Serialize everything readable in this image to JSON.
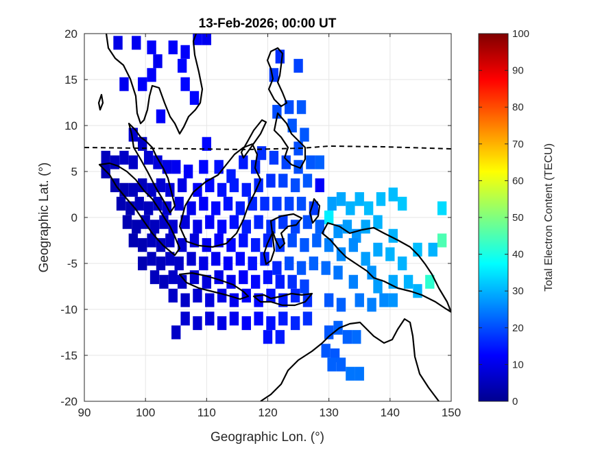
{
  "chart_data": {
    "type": "heatmap",
    "title": "13-Feb-2026; 00:00 UT",
    "xlabel": "Geographic Lon. (°)",
    "ylabel": "Geographic Lat. (°)",
    "xlim": [
      90,
      150
    ],
    "ylim": [
      -20,
      20
    ],
    "xticks": [
      "90",
      "100",
      "110",
      "120",
      "130",
      "140",
      "150"
    ],
    "yticks": [
      "20",
      "15",
      "10",
      "5",
      "0",
      "-5",
      "-10",
      "-15",
      "-20"
    ],
    "grid": true,
    "colorbar": {
      "label": "Total Electron Content (TECU)",
      "range": [
        0,
        100
      ],
      "ticks": [
        "100",
        "90",
        "80",
        "70",
        "60",
        "50",
        "40",
        "30",
        "20",
        "10",
        "0"
      ],
      "colormap": "jet"
    },
    "cell_size_deg": [
      1.5,
      1.5
    ],
    "cells": [
      {
        "lon": 95.5,
        "lat": 19,
        "tec": 10
      },
      {
        "lon": 98.5,
        "lat": 19,
        "tec": 11
      },
      {
        "lon": 101,
        "lat": 18.5,
        "tec": 12
      },
      {
        "lon": 102,
        "lat": 17,
        "tec": 11
      },
      {
        "lon": 104.5,
        "lat": 18.5,
        "tec": 12
      },
      {
        "lon": 106.5,
        "lat": 18,
        "tec": 12
      },
      {
        "lon": 106,
        "lat": 16.5,
        "tec": 13
      },
      {
        "lon": 108.5,
        "lat": 19.5,
        "tec": 12
      },
      {
        "lon": 110,
        "lat": 19.5,
        "tec": 11
      },
      {
        "lon": 101,
        "lat": 15.5,
        "tec": 12
      },
      {
        "lon": 99.5,
        "lat": 14.5,
        "tec": 12
      },
      {
        "lon": 96.5,
        "lat": 14.5,
        "tec": 11
      },
      {
        "lon": 106.5,
        "lat": 14.5,
        "tec": 13
      },
      {
        "lon": 108,
        "lat": 13,
        "tec": 13
      },
      {
        "lon": 102.5,
        "lat": 11,
        "tec": 12
      },
      {
        "lon": 110,
        "lat": 8,
        "tec": 13
      },
      {
        "lon": 122,
        "lat": 17.5,
        "tec": 17
      },
      {
        "lon": 121,
        "lat": 15.5,
        "tec": 18
      },
      {
        "lon": 125,
        "lat": 16.5,
        "tec": 19
      },
      {
        "lon": 123.5,
        "lat": 12,
        "tec": 20
      },
      {
        "lon": 121.5,
        "lat": 11.5,
        "tec": 20
      },
      {
        "lon": 125.5,
        "lat": 12,
        "tec": 21
      },
      {
        "lon": 124,
        "lat": 10,
        "tec": 21
      },
      {
        "lon": 126,
        "lat": 9,
        "tec": 21
      },
      {
        "lon": 125,
        "lat": 7.5,
        "tec": 20
      },
      {
        "lon": 93.5,
        "lat": 6.5,
        "tec": 6
      },
      {
        "lon": 93.5,
        "lat": 5,
        "tec": 5
      },
      {
        "lon": 95,
        "lat": 6,
        "tec": 6
      },
      {
        "lon": 96.5,
        "lat": 6.5,
        "tec": 7
      },
      {
        "lon": 98,
        "lat": 6,
        "tec": 7
      },
      {
        "lon": 99.5,
        "lat": 8,
        "tec": 7
      },
      {
        "lon": 98,
        "lat": 9,
        "tec": 8
      },
      {
        "lon": 100.5,
        "lat": 6.5,
        "tec": 8
      },
      {
        "lon": 102,
        "lat": 6,
        "tec": 9
      },
      {
        "lon": 103.5,
        "lat": 5.5,
        "tec": 10
      },
      {
        "lon": 105,
        "lat": 5.5,
        "tec": 11
      },
      {
        "lon": 107,
        "lat": 5,
        "tec": 12
      },
      {
        "lon": 109.5,
        "lat": 5.5,
        "tec": 13
      },
      {
        "lon": 112,
        "lat": 5.5,
        "tec": 14
      },
      {
        "lon": 114,
        "lat": 4.5,
        "tec": 15
      },
      {
        "lon": 116,
        "lat": 6,
        "tec": 15
      },
      {
        "lon": 118,
        "lat": 5.5,
        "tec": 16
      },
      {
        "lon": 119,
        "lat": 7,
        "tec": 17
      },
      {
        "lon": 121,
        "lat": 6.5,
        "tec": 18
      },
      {
        "lon": 123,
        "lat": 6,
        "tec": 19
      },
      {
        "lon": 125,
        "lat": 5.5,
        "tec": 20
      },
      {
        "lon": 127,
        "lat": 6,
        "tec": 21
      },
      {
        "lon": 128.5,
        "lat": 6,
        "tec": 22
      },
      {
        "lon": 95,
        "lat": 3.5,
        "tec": 5
      },
      {
        "lon": 96.5,
        "lat": 3,
        "tec": 5
      },
      {
        "lon": 98,
        "lat": 3,
        "tec": 6
      },
      {
        "lon": 99.5,
        "lat": 3.5,
        "tec": 6
      },
      {
        "lon": 101,
        "lat": 3,
        "tec": 7
      },
      {
        "lon": 102.5,
        "lat": 3.5,
        "tec": 8
      },
      {
        "lon": 104,
        "lat": 3,
        "tec": 9
      },
      {
        "lon": 106,
        "lat": 3.5,
        "tec": 10
      },
      {
        "lon": 108.5,
        "lat": 3,
        "tec": 12
      },
      {
        "lon": 110.5,
        "lat": 3.5,
        "tec": 13
      },
      {
        "lon": 112.5,
        "lat": 3,
        "tec": 14
      },
      {
        "lon": 114.5,
        "lat": 3.5,
        "tec": 15
      },
      {
        "lon": 116.5,
        "lat": 3,
        "tec": 15
      },
      {
        "lon": 118.5,
        "lat": 3.5,
        "tec": 16
      },
      {
        "lon": 120.5,
        "lat": 4,
        "tec": 17
      },
      {
        "lon": 122.5,
        "lat": 4,
        "tec": 19
      },
      {
        "lon": 124.5,
        "lat": 3.5,
        "tec": 20
      },
      {
        "lon": 126.5,
        "lat": 4,
        "tec": 21
      },
      {
        "lon": 128.5,
        "lat": 3.5,
        "tec": 12
      },
      {
        "lon": 96,
        "lat": 1.5,
        "tec": 5
      },
      {
        "lon": 97.5,
        "lat": 1,
        "tec": 5
      },
      {
        "lon": 99,
        "lat": 1.5,
        "tec": 6
      },
      {
        "lon": 100.5,
        "lat": 1,
        "tec": 6
      },
      {
        "lon": 102,
        "lat": 1.5,
        "tec": 7
      },
      {
        "lon": 103.5,
        "lat": 1,
        "tec": 8
      },
      {
        "lon": 105.5,
        "lat": 1.5,
        "tec": 10
      },
      {
        "lon": 107.5,
        "lat": 1,
        "tec": 11
      },
      {
        "lon": 109.5,
        "lat": 1.5,
        "tec": 12
      },
      {
        "lon": 111.5,
        "lat": 1,
        "tec": 13
      },
      {
        "lon": 113.5,
        "lat": 1.5,
        "tec": 14
      },
      {
        "lon": 115.5,
        "lat": 1,
        "tec": 15
      },
      {
        "lon": 117.5,
        "lat": 1.5,
        "tec": 16
      },
      {
        "lon": 119.5,
        "lat": 1.5,
        "tec": 17
      },
      {
        "lon": 121.5,
        "lat": 1.5,
        "tec": 18
      },
      {
        "lon": 123.5,
        "lat": 1.5,
        "tec": 19
      },
      {
        "lon": 125.5,
        "lat": 1.5,
        "tec": 20
      },
      {
        "lon": 127.5,
        "lat": 1,
        "tec": 18
      },
      {
        "lon": 130.5,
        "lat": 1.5,
        "tec": 28
      },
      {
        "lon": 132,
        "lat": 2,
        "tec": 29
      },
      {
        "lon": 133.5,
        "lat": 1,
        "tec": 30
      },
      {
        "lon": 135,
        "lat": 2,
        "tec": 30
      },
      {
        "lon": 136.5,
        "lat": 1,
        "tec": 31
      },
      {
        "lon": 138.5,
        "lat": 2,
        "tec": 31
      },
      {
        "lon": 140.5,
        "lat": 2.5,
        "tec": 31
      },
      {
        "lon": 142,
        "lat": 1.5,
        "tec": 32
      },
      {
        "lon": 148.5,
        "lat": 1,
        "tec": 34
      },
      {
        "lon": 97,
        "lat": -0.5,
        "tec": 5
      },
      {
        "lon": 98.5,
        "lat": -1,
        "tec": 5
      },
      {
        "lon": 100,
        "lat": -0.5,
        "tec": 6
      },
      {
        "lon": 101.5,
        "lat": -1,
        "tec": 6
      },
      {
        "lon": 103,
        "lat": -0.5,
        "tec": 7
      },
      {
        "lon": 104.5,
        "lat": -1,
        "tec": 8
      },
      {
        "lon": 106.5,
        "lat": -0.5,
        "tec": 9
      },
      {
        "lon": 108.5,
        "lat": -1,
        "tec": 10
      },
      {
        "lon": 110.5,
        "lat": -0.5,
        "tec": 12
      },
      {
        "lon": 112.5,
        "lat": -1,
        "tec": 13
      },
      {
        "lon": 114.5,
        "lat": -0.5,
        "tec": 14
      },
      {
        "lon": 116.5,
        "lat": -1,
        "tec": 15
      },
      {
        "lon": 118.5,
        "lat": -0.5,
        "tec": 16
      },
      {
        "lon": 120.5,
        "lat": -1,
        "tec": 17
      },
      {
        "lon": 122.5,
        "lat": -0.5,
        "tec": 18
      },
      {
        "lon": 124.5,
        "lat": -1,
        "tec": 19
      },
      {
        "lon": 126.5,
        "lat": -0.5,
        "tec": 20
      },
      {
        "lon": 128.5,
        "lat": -1,
        "tec": 22
      },
      {
        "lon": 130,
        "lat": 0,
        "tec": 36
      },
      {
        "lon": 131.5,
        "lat": -1.5,
        "tec": 27
      },
      {
        "lon": 133,
        "lat": -1,
        "tec": 28
      },
      {
        "lon": 134.5,
        "lat": -2,
        "tec": 27
      },
      {
        "lon": 136,
        "lat": -1,
        "tec": 29
      },
      {
        "lon": 138,
        "lat": -0.5,
        "tec": 30
      },
      {
        "lon": 140.5,
        "lat": -2,
        "tec": 30
      },
      {
        "lon": 98,
        "lat": -2.5,
        "tec": 5
      },
      {
        "lon": 99.5,
        "lat": -3,
        "tec": 5
      },
      {
        "lon": 101,
        "lat": -2.5,
        "tec": 6
      },
      {
        "lon": 102.5,
        "lat": -3,
        "tec": 6
      },
      {
        "lon": 104,
        "lat": -2.5,
        "tec": 7
      },
      {
        "lon": 106,
        "lat": -3,
        "tec": 8
      },
      {
        "lon": 108,
        "lat": -2.5,
        "tec": 9
      },
      {
        "lon": 110,
        "lat": -3,
        "tec": 11
      },
      {
        "lon": 112,
        "lat": -2.5,
        "tec": 12
      },
      {
        "lon": 114,
        "lat": -3,
        "tec": 13
      },
      {
        "lon": 116,
        "lat": -2.5,
        "tec": 14
      },
      {
        "lon": 118,
        "lat": -3,
        "tec": 15
      },
      {
        "lon": 120,
        "lat": -2.5,
        "tec": 16
      },
      {
        "lon": 122,
        "lat": -3,
        "tec": 18
      },
      {
        "lon": 124,
        "lat": -2.5,
        "tec": 20
      },
      {
        "lon": 126,
        "lat": -3,
        "tec": 21
      },
      {
        "lon": 128,
        "lat": -2.5,
        "tec": 22
      },
      {
        "lon": 130,
        "lat": -3,
        "tec": 25
      },
      {
        "lon": 132,
        "lat": -4,
        "tec": 26
      },
      {
        "lon": 134,
        "lat": -3,
        "tec": 26
      },
      {
        "lon": 136,
        "lat": -4.5,
        "tec": 28
      },
      {
        "lon": 138,
        "lat": -3.5,
        "tec": 29
      },
      {
        "lon": 140,
        "lat": -4,
        "tec": 30
      },
      {
        "lon": 142,
        "lat": -5,
        "tec": 30
      },
      {
        "lon": 144.5,
        "lat": -3.5,
        "tec": 31
      },
      {
        "lon": 147,
        "lat": -3.5,
        "tec": 30
      },
      {
        "lon": 148.5,
        "lat": -2.5,
        "tec": 45
      },
      {
        "lon": 99.5,
        "lat": -5,
        "tec": 5
      },
      {
        "lon": 101,
        "lat": -4.5,
        "tec": 6
      },
      {
        "lon": 102.5,
        "lat": -5,
        "tec": 6
      },
      {
        "lon": 104,
        "lat": -4.5,
        "tec": 7
      },
      {
        "lon": 105.5,
        "lat": -5,
        "tec": 7
      },
      {
        "lon": 107.5,
        "lat": -4.5,
        "tec": 8
      },
      {
        "lon": 109.5,
        "lat": -5,
        "tec": 10
      },
      {
        "lon": 111.5,
        "lat": -4.5,
        "tec": 11
      },
      {
        "lon": 113.5,
        "lat": -5,
        "tec": 12
      },
      {
        "lon": 115.5,
        "lat": -4.5,
        "tec": 13
      },
      {
        "lon": 117.5,
        "lat": -5,
        "tec": 14
      },
      {
        "lon": 119.5,
        "lat": -4.5,
        "tec": 15
      },
      {
        "lon": 121.5,
        "lat": -5.5,
        "tec": 16
      },
      {
        "lon": 123.5,
        "lat": -5,
        "tec": 20
      },
      {
        "lon": 125.5,
        "lat": -5.5,
        "tec": 21
      },
      {
        "lon": 127.5,
        "lat": -5,
        "tec": 22
      },
      {
        "lon": 129.5,
        "lat": -5.5,
        "tec": 23
      },
      {
        "lon": 131.5,
        "lat": -6,
        "tec": 24
      },
      {
        "lon": 134,
        "lat": -7,
        "tec": 25
      },
      {
        "lon": 137,
        "lat": -6,
        "tec": 27
      },
      {
        "lon": 138,
        "lat": -7.5,
        "tec": 28
      },
      {
        "lon": 140.5,
        "lat": -7,
        "tec": 29
      },
      {
        "lon": 143,
        "lat": -7,
        "tec": 30
      },
      {
        "lon": 101.5,
        "lat": -6.5,
        "tec": 6
      },
      {
        "lon": 103,
        "lat": -7,
        "tec": 6
      },
      {
        "lon": 104.5,
        "lat": -6.5,
        "tec": 7
      },
      {
        "lon": 106,
        "lat": -7,
        "tec": 7
      },
      {
        "lon": 108,
        "lat": -6.5,
        "tec": 8
      },
      {
        "lon": 110,
        "lat": -7,
        "tec": 9
      },
      {
        "lon": 112,
        "lat": -6.5,
        "tec": 10
      },
      {
        "lon": 114,
        "lat": -7,
        "tec": 11
      },
      {
        "lon": 116,
        "lat": -6.5,
        "tec": 12
      },
      {
        "lon": 118,
        "lat": -7,
        "tec": 13
      },
      {
        "lon": 120,
        "lat": -6.5,
        "tec": 14
      },
      {
        "lon": 122,
        "lat": -7,
        "tec": 15
      },
      {
        "lon": 124,
        "lat": -7,
        "tec": 17
      },
      {
        "lon": 126,
        "lat": -7.5,
        "tec": 19
      },
      {
        "lon": 104.5,
        "lat": -8.5,
        "tec": 7
      },
      {
        "lon": 106.5,
        "lat": -9,
        "tec": 7
      },
      {
        "lon": 108.5,
        "lat": -8.5,
        "tec": 8
      },
      {
        "lon": 110.5,
        "lat": -9,
        "tec": 9
      },
      {
        "lon": 112.5,
        "lat": -8.5,
        "tec": 10
      },
      {
        "lon": 114.5,
        "lat": -9,
        "tec": 11
      },
      {
        "lon": 116.5,
        "lat": -8.5,
        "tec": 12
      },
      {
        "lon": 118.5,
        "lat": -9,
        "tec": 13
      },
      {
        "lon": 120.5,
        "lat": -8.5,
        "tec": 14
      },
      {
        "lon": 122.5,
        "lat": -9,
        "tec": 15
      },
      {
        "lon": 124.5,
        "lat": -8.5,
        "tec": 16
      },
      {
        "lon": 126.5,
        "lat": -9,
        "tec": 17
      },
      {
        "lon": 130,
        "lat": -9,
        "tec": 21
      },
      {
        "lon": 132,
        "lat": -9.5,
        "tec": 22
      },
      {
        "lon": 135,
        "lat": -9,
        "tec": 24
      },
      {
        "lon": 137,
        "lat": -9.5,
        "tec": 25
      },
      {
        "lon": 139,
        "lat": -9,
        "tec": 26
      },
      {
        "lon": 140.5,
        "lat": -9,
        "tec": 27
      },
      {
        "lon": 144.5,
        "lat": -8,
        "tec": 30
      },
      {
        "lon": 146.5,
        "lat": -7,
        "tec": 42
      },
      {
        "lon": 106.5,
        "lat": -11,
        "tec": 8
      },
      {
        "lon": 108.5,
        "lat": -11.5,
        "tec": 8
      },
      {
        "lon": 110.5,
        "lat": -11,
        "tec": 9
      },
      {
        "lon": 112.5,
        "lat": -11.5,
        "tec": 10
      },
      {
        "lon": 114.5,
        "lat": -11,
        "tec": 11
      },
      {
        "lon": 116.5,
        "lat": -11.5,
        "tec": 12
      },
      {
        "lon": 118.5,
        "lat": -11,
        "tec": 13
      },
      {
        "lon": 120.5,
        "lat": -11.5,
        "tec": 14
      },
      {
        "lon": 122.5,
        "lat": -11,
        "tec": 15
      },
      {
        "lon": 124.5,
        "lat": -11.5,
        "tec": 16
      },
      {
        "lon": 126.5,
        "lat": -11,
        "tec": 17
      },
      {
        "lon": 120,
        "lat": -13,
        "tec": 14
      },
      {
        "lon": 122,
        "lat": -13,
        "tec": 15
      },
      {
        "lon": 105,
        "lat": -12.5,
        "tec": 7
      },
      {
        "lon": 130,
        "lat": -12.5,
        "tec": 21
      },
      {
        "lon": 131.5,
        "lat": -12,
        "tec": 22
      },
      {
        "lon": 133,
        "lat": -13,
        "tec": 22
      },
      {
        "lon": 134.5,
        "lat": -13,
        "tec": 23
      },
      {
        "lon": 129.5,
        "lat": -14.5,
        "tec": 21
      },
      {
        "lon": 131,
        "lat": -15,
        "tec": 21
      },
      {
        "lon": 132,
        "lat": -16,
        "tec": 22
      },
      {
        "lon": 133.5,
        "lat": -17,
        "tec": 24
      },
      {
        "lon": 135,
        "lat": -17,
        "tec": 24
      },
      {
        "lon": 130.5,
        "lat": -16,
        "tec": 22
      }
    ]
  },
  "page": {
    "title": "13-Feb-2026; 00:00 UT",
    "xlabel": "Geographic Lon. (°)",
    "ylabel": "Geographic Lat. (°)",
    "colorbar_label": "Total Electron Content (TECU)"
  },
  "map_layers": [
    "coastlines",
    "magnetic-equator"
  ],
  "colors": {
    "coastline": "#000000",
    "magnetic_equator": "#000000",
    "grid": "#e6e6e6",
    "axis": "#262626",
    "background": "#ffffff"
  }
}
